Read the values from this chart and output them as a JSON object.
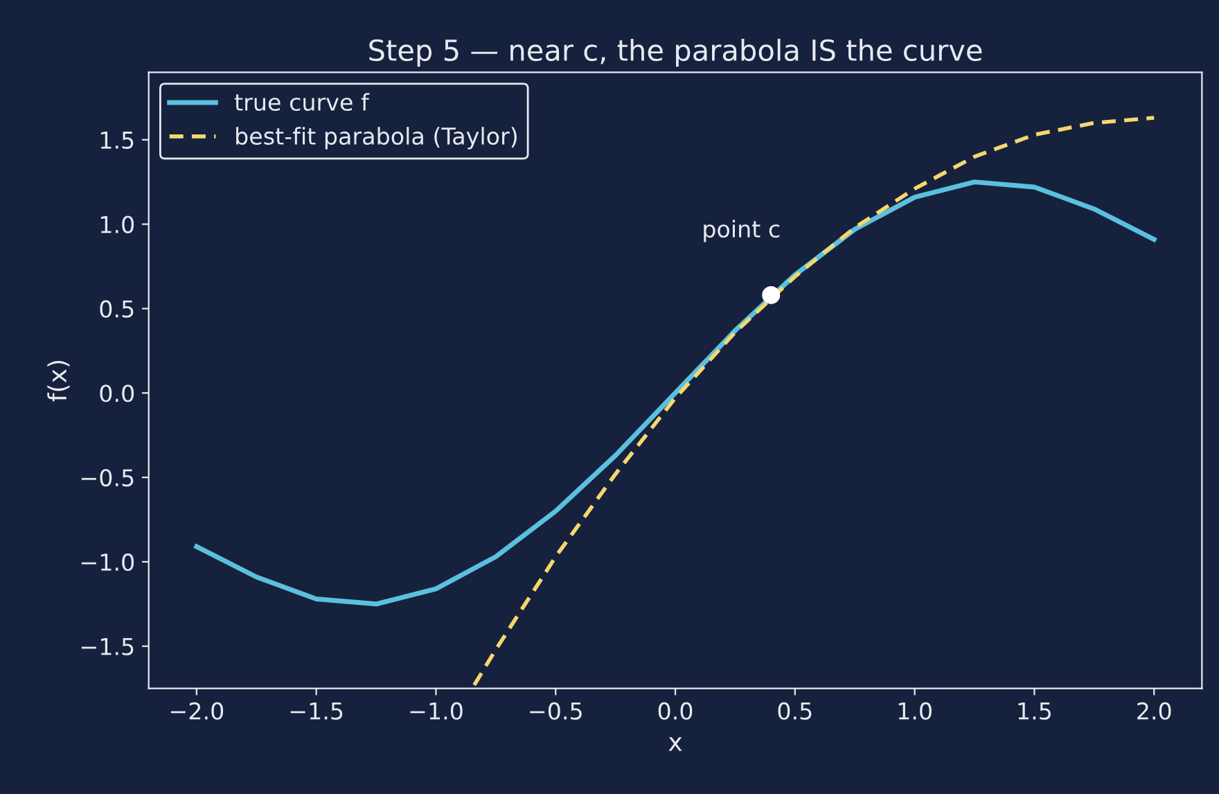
{
  "chart_data": {
    "type": "line",
    "title": "Step 5 — near c, the parabola IS the curve",
    "xlabel": "x",
    "ylabel": "f(x)",
    "series": [
      {
        "name": "true curve f",
        "color": "#5bc0de",
        "line_style": "solid",
        "x": [
          -2.0,
          -1.75,
          -1.5,
          -1.25,
          -1.0,
          -0.75,
          -0.5,
          -0.25,
          0.0,
          0.25,
          0.5,
          0.75,
          1.0,
          1.25,
          1.5,
          1.75,
          2.0
        ],
        "values": [
          -0.91,
          -1.09,
          -1.22,
          -1.25,
          -1.16,
          -0.97,
          -0.7,
          -0.37,
          0.0,
          0.37,
          0.7,
          0.97,
          1.16,
          1.25,
          1.22,
          1.09,
          0.91
        ]
      },
      {
        "name": "best-fit parabola (Taylor)",
        "color": "#f5d76e",
        "line_style": "dashed",
        "x": [
          -0.84,
          -0.75,
          -0.5,
          -0.25,
          0.0,
          0.25,
          0.5,
          0.75,
          1.0,
          1.25,
          1.5,
          1.75,
          2.0
        ],
        "values": [
          -1.73,
          -1.52,
          -0.97,
          -0.48,
          -0.03,
          0.36,
          0.69,
          0.98,
          1.21,
          1.4,
          1.53,
          1.6,
          1.63
        ]
      },
      {
        "type": "scatter",
        "color": "#ffffff",
        "marker": "circle",
        "x": [
          0.4
        ],
        "values": [
          0.58
        ]
      }
    ],
    "annotations": [
      {
        "text": "point c",
        "x": 0.4,
        "y": 0.58
      }
    ],
    "xlim": [
      -2.2,
      2.2
    ],
    "ylim": [
      -1.75,
      1.9
    ],
    "xticks": [
      {
        "value": -2.0,
        "label": "−2.0"
      },
      {
        "value": -1.5,
        "label": "−1.5"
      },
      {
        "value": -1.0,
        "label": "−1.0"
      },
      {
        "value": -0.5,
        "label": "−0.5"
      },
      {
        "value": 0.0,
        "label": "0.0"
      },
      {
        "value": 0.5,
        "label": "0.5"
      },
      {
        "value": 1.0,
        "label": "1.0"
      },
      {
        "value": 1.5,
        "label": "1.5"
      },
      {
        "value": 2.0,
        "label": "2.0"
      }
    ],
    "yticks": [
      {
        "value": -1.5,
        "label": "−1.5"
      },
      {
        "value": -1.0,
        "label": "−1.0"
      },
      {
        "value": -0.5,
        "label": "−0.5"
      },
      {
        "value": 0.0,
        "label": "0.0"
      },
      {
        "value": 0.5,
        "label": "0.5"
      },
      {
        "value": 1.0,
        "label": "1.0"
      },
      {
        "value": 1.5,
        "label": "1.5"
      }
    ],
    "grid": false,
    "legend": "top left"
  }
}
